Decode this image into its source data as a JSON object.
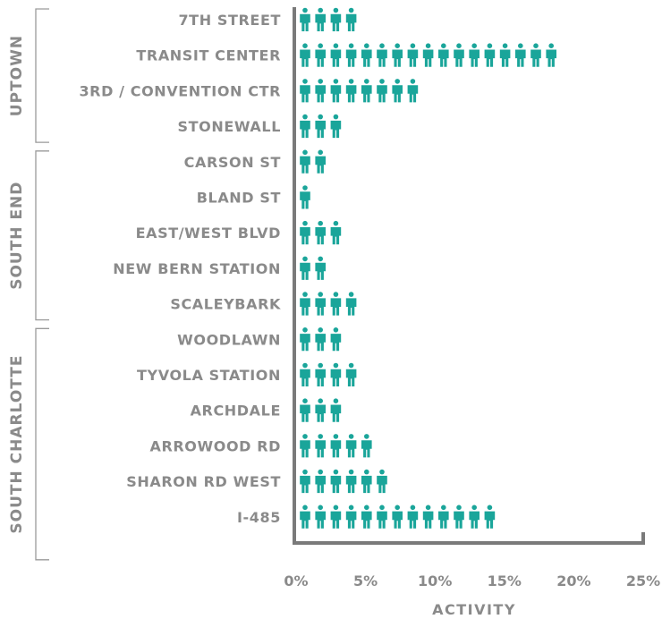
{
  "chart_data": {
    "type": "bar",
    "xlabel": "ACTIVITY",
    "xlim": [
      0,
      25
    ],
    "x_ticks": [
      "0%",
      "5%",
      "10%",
      "15%",
      "20%",
      "25%"
    ],
    "mark_color": "#1aa59a",
    "axis_color": "#7a7a7a",
    "units_per_icon": 1,
    "groups": [
      {
        "name": "UPTOWN",
        "categories": [
          "7TH STREET",
          "TRANSIT CENTER",
          "3RD / CONVENTION CTR",
          "STONEWALL"
        ]
      },
      {
        "name": "SOUTH END",
        "categories": [
          "CARSON ST",
          "BLAND ST",
          "EAST/WEST BLVD",
          "NEW BERN STATION",
          "SCALEYBARK"
        ]
      },
      {
        "name": "SOUTH CHARLOTTE",
        "categories": [
          "WOODLAWN",
          "TYVOLA STATION",
          "ARCHDALE",
          "ARROWOOD RD",
          "SHARON RD WEST",
          "I-485"
        ]
      }
    ],
    "categories": [
      "7TH STREET",
      "TRANSIT CENTER",
      "3RD / CONVENTION CTR",
      "STONEWALL",
      "CARSON ST",
      "BLAND ST",
      "EAST/WEST BLVD",
      "NEW BERN STATION",
      "SCALEYBARK",
      "WOODLAWN",
      "TYVOLA STATION",
      "ARCHDALE",
      "ARROWOOD RD",
      "SHARON RD WEST",
      "I-485"
    ],
    "values": [
      4,
      17,
      8,
      3,
      2,
      1,
      3,
      2,
      4,
      3,
      4,
      3,
      5,
      6,
      13
    ]
  }
}
